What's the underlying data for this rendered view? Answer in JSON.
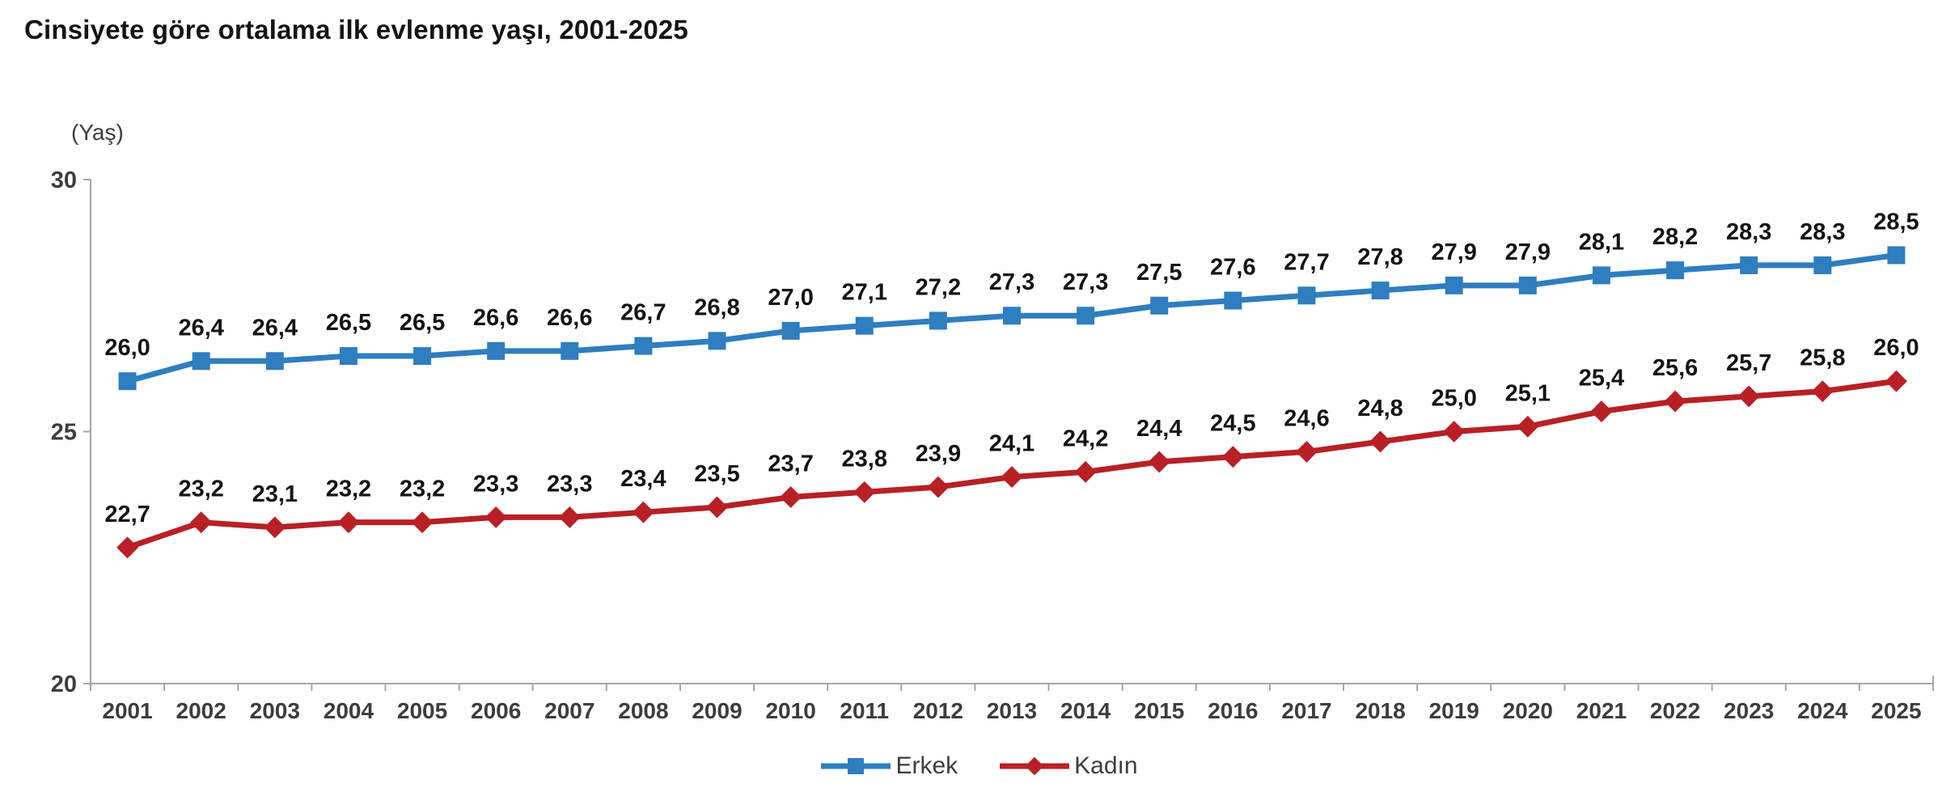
{
  "page": {
    "title": "Cinsiyete göre ortalama ilk evlenme yaşı, 2001-2025"
  },
  "chart_data": {
    "type": "line",
    "title": "Cinsiyete göre ortalama ilk evlenme yaşı, 2001-2025",
    "y_unit_label": "(Yaş)",
    "categories": [
      "2001",
      "2002",
      "2003",
      "2004",
      "2005",
      "2006",
      "2007",
      "2008",
      "2009",
      "2010",
      "2011",
      "2012",
      "2013",
      "2014",
      "2015",
      "2016",
      "2017",
      "2018",
      "2019",
      "2020",
      "2021",
      "2022",
      "2023",
      "2024",
      "2025"
    ],
    "series": [
      {
        "name": "Erkek",
        "color": "#2E7EC0",
        "marker": "square",
        "values": [
          26.0,
          26.4,
          26.4,
          26.5,
          26.5,
          26.6,
          26.6,
          26.7,
          26.8,
          27.0,
          27.1,
          27.2,
          27.3,
          27.3,
          27.5,
          27.6,
          27.7,
          27.8,
          27.9,
          27.9,
          28.1,
          28.2,
          28.3,
          28.3,
          28.5
        ],
        "value_labels": [
          "26,0",
          "26,4",
          "26,4",
          "26,5",
          "26,5",
          "26,6",
          "26,6",
          "26,7",
          "26,8",
          "27,0",
          "27,1",
          "27,2",
          "27,3",
          "27,3",
          "27,5",
          "27,6",
          "27,7",
          "27,8",
          "27,9",
          "27,9",
          "28,1",
          "28,2",
          "28,3",
          "28,3",
          "28,5"
        ]
      },
      {
        "name": "Kadın",
        "color": "#B82025",
        "marker": "diamond",
        "values": [
          22.7,
          23.2,
          23.1,
          23.2,
          23.2,
          23.3,
          23.3,
          23.4,
          23.5,
          23.7,
          23.8,
          23.9,
          24.1,
          24.2,
          24.4,
          24.5,
          24.6,
          24.8,
          25.0,
          25.1,
          25.4,
          25.6,
          25.7,
          25.8,
          26.0
        ],
        "value_labels": [
          "22,7",
          "23,2",
          "23,1",
          "23,2",
          "23,2",
          "23,3",
          "23,3",
          "23,4",
          "23,5",
          "23,7",
          "23,8",
          "23,9",
          "24,1",
          "24,2",
          "24,4",
          "24,5",
          "24,6",
          "24,8",
          "25,0",
          "25,1",
          "25,4",
          "25,6",
          "25,7",
          "25,8",
          "26,0"
        ]
      }
    ],
    "ylim": [
      20,
      30
    ],
    "y_ticks": [
      30,
      25,
      20
    ],
    "grid": false,
    "legend_position": "bottom-center",
    "axis_color": "#a6a6a6"
  }
}
